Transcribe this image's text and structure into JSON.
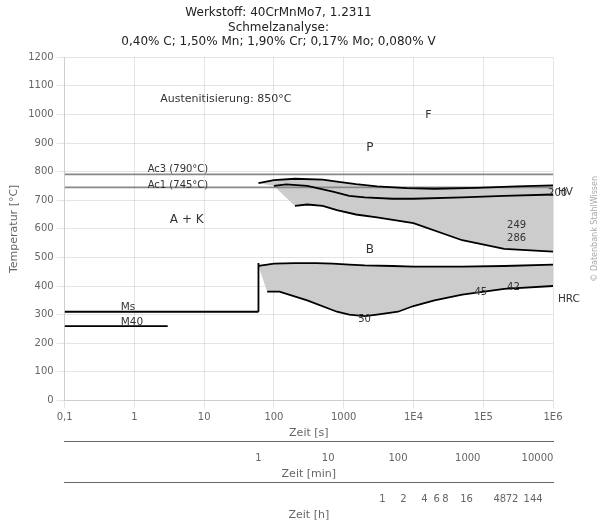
{
  "chart_data": {
    "type": "line",
    "title": [
      "Werkstoff: 40CrMnMo7, 1.2311",
      "Schmelzanalyse:",
      "0,40% C; 1,50% Mn; 1,90% Cr; 0,17% Mo; 0,080% V"
    ],
    "x_label": "Zeit [s]",
    "y_label": "Temperatur [°C]",
    "log": "x",
    "grid": true,
    "xlim": [
      0.1,
      1000000
    ],
    "xticks": [
      {
        "value": 0.1,
        "label": "0,1"
      },
      1,
      10,
      100,
      1000,
      {
        "value": 10000,
        "label": "1E4"
      },
      {
        "value": 100000,
        "label": "1E5"
      },
      {
        "value": 1000000,
        "label": "1E6"
      }
    ],
    "ylim": [
      0,
      1200
    ],
    "yticks": [
      0,
      100,
      200,
      300,
      400,
      500,
      600,
      700,
      800,
      900,
      1000,
      1100,
      1200
    ],
    "minute_axis": {
      "label": "Zeit [min]",
      "ticks": [
        {
          "value": 60,
          "label": "1"
        },
        {
          "value": 600,
          "label": "10"
        },
        {
          "value": 6000,
          "label": "100"
        },
        {
          "value": 60000,
          "label": "1000"
        },
        {
          "value": 600000,
          "label": "10000"
        }
      ]
    },
    "hour_axis": {
      "label": "Zeit [h]",
      "ticks": [
        {
          "value": 3600,
          "label": "1"
        },
        {
          "value": 7200,
          "label": "2"
        },
        {
          "value": 14400,
          "label": "4"
        },
        {
          "value": 21600,
          "label": "6"
        },
        {
          "value": 28800,
          "label": "8"
        },
        {
          "value": 57600,
          "label": "16"
        },
        {
          "value": 172800,
          "label": "48"
        },
        {
          "value": 259200,
          "label": "72"
        },
        {
          "value": 518400,
          "label": "144"
        }
      ]
    },
    "series": [
      {
        "type": "area",
        "color": "#cccccc",
        "x": [
          60,
          100,
          200,
          500,
          800,
          1500,
          3000,
          8000,
          20000,
          80000,
          300000,
          1000000,
          1000000,
          200000,
          50000,
          10000,
          5000,
          2000,
          1200,
          700,
          300,
          150,
          100
        ],
        "values": [
          760,
          770,
          775,
          772,
          765,
          756,
          748,
          742,
          740,
          743,
          748,
          752,
          720,
          715,
          710,
          705,
          705,
          710,
          715,
          730,
          750,
          755,
          750
        ]
      },
      {
        "type": "area",
        "color": "#cccccc",
        "x": [
          100,
          150,
          300,
          700,
          1200,
          2000,
          5000,
          10000,
          50000,
          200000,
          1000000,
          1000000,
          200000,
          50000,
          10000,
          3000,
          1500,
          800,
          500,
          300,
          200
        ],
        "values": [
          750,
          755,
          750,
          730,
          715,
          710,
          705,
          705,
          710,
          715,
          720,
          520,
          530,
          560,
          620,
          640,
          650,
          665,
          680,
          685,
          680
        ]
      },
      {
        "type": "area",
        "color": "#cccccc",
        "x": [
          60,
          80,
          100,
          200,
          400,
          700,
          1200,
          2000,
          5000,
          10000,
          50000,
          200000,
          1000000,
          1000000,
          200000,
          50000,
          20000,
          10000,
          6000,
          3000,
          2000,
          1200,
          800,
          300,
          120,
          80
        ],
        "values": [
          470,
          475,
          478,
          480,
          480,
          478,
          475,
          472,
          470,
          468,
          468,
          470,
          475,
          400,
          390,
          370,
          350,
          330,
          310,
          300,
          295,
          300,
          310,
          350,
          380,
          380
        ]
      },
      {
        "type": "line",
        "color": "#000000",
        "x": [
          60,
          100,
          200,
          500,
          800,
          1500,
          3000,
          8000,
          20000,
          80000,
          300000,
          1000000
        ],
        "values": [
          760,
          770,
          775,
          772,
          765,
          756,
          748,
          742,
          740,
          743,
          748,
          752
        ]
      },
      {
        "type": "line",
        "color": "#000000",
        "x": [
          100,
          150,
          300,
          700,
          1200,
          2000,
          5000,
          10000,
          50000,
          200000,
          1000000
        ],
        "values": [
          750,
          755,
          750,
          730,
          715,
          710,
          705,
          705,
          710,
          715,
          720
        ]
      },
      {
        "type": "line",
        "color": "#000000",
        "x": [
          200,
          300,
          500,
          800,
          1500,
          3000,
          10000,
          50000,
          200000,
          1000000
        ],
        "values": [
          680,
          685,
          680,
          665,
          650,
          640,
          620,
          560,
          530,
          520
        ]
      },
      {
        "type": "line",
        "color": "#000000",
        "x": [
          60,
          80,
          100,
          200,
          400,
          700,
          1200,
          2000,
          5000,
          10000,
          50000,
          200000,
          1000000
        ],
        "values": [
          470,
          475,
          478,
          480,
          480,
          478,
          475,
          472,
          470,
          468,
          468,
          470,
          475
        ]
      },
      {
        "type": "line",
        "color": "#000000",
        "x": [
          80,
          120,
          300,
          800,
          1200,
          2000,
          3000,
          6000,
          10000,
          20000,
          50000,
          200000,
          1000000
        ],
        "values": [
          380,
          380,
          350,
          310,
          300,
          295,
          300,
          310,
          330,
          350,
          370,
          390,
          400
        ]
      },
      {
        "type": "line",
        "color": "#000000",
        "x": [
          0.1,
          60
        ],
        "values": [
          310,
          310
        ]
      },
      {
        "type": "line",
        "color": "#000000",
        "x": [
          60,
          60
        ],
        "values": [
          310,
          480
        ]
      },
      {
        "type": "line",
        "color": "#000000",
        "x": [
          0.1,
          3
        ],
        "values": [
          260,
          260
        ]
      },
      {
        "type": "line",
        "color": "#888888",
        "x": [
          0.1,
          1000000
        ],
        "values": [
          790,
          790
        ]
      },
      {
        "type": "line",
        "color": "#888888",
        "x": [
          0.1,
          1000000
        ],
        "values": [
          745,
          745
        ]
      }
    ],
    "annotations": [
      "Austenitisierung: 850°C",
      "Ac3 (790°C)",
      "Ac1 (745°C)",
      "Ms",
      "M40",
      "A + K",
      "P",
      "B",
      "F",
      "HV",
      "HRC",
      "200",
      "249",
      "286",
      "45",
      "42",
      "50",
      "© Datenbank StahlWissen"
    ]
  }
}
